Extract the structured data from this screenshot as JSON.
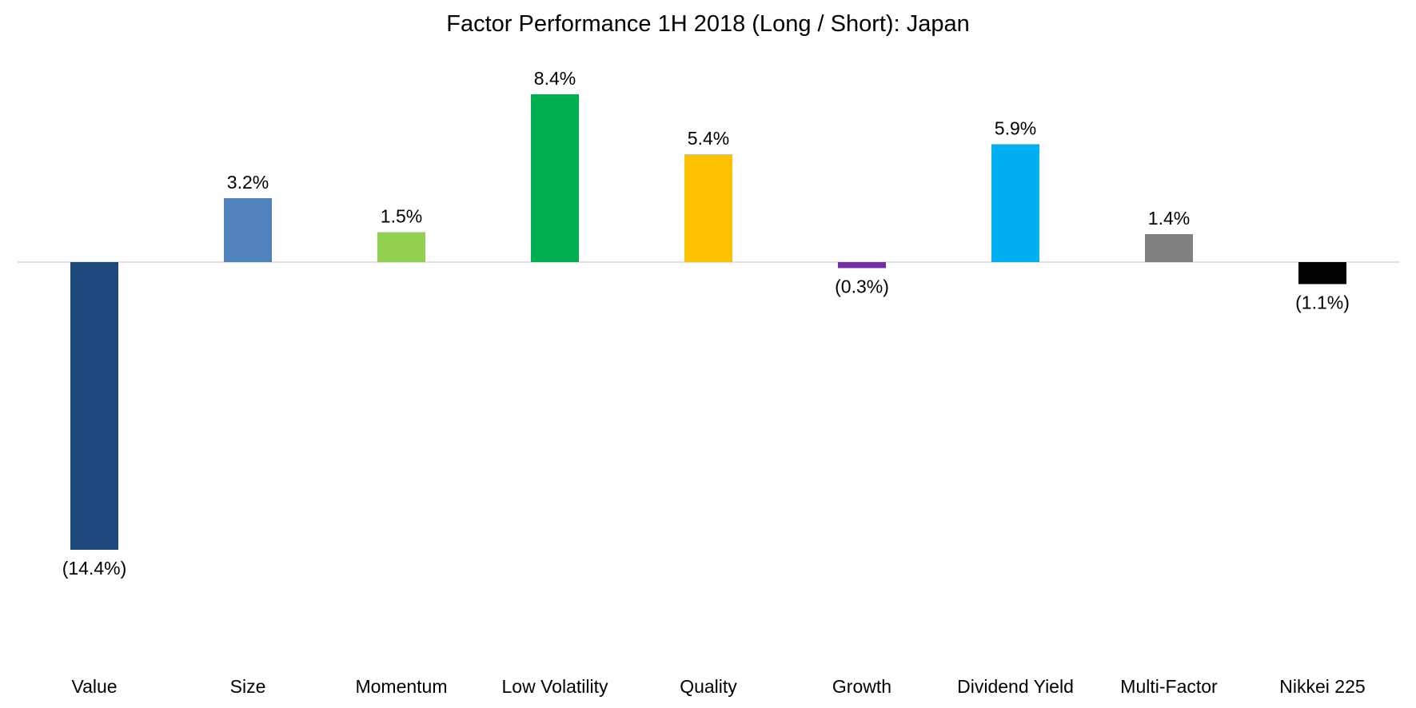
{
  "chart_data": {
    "type": "bar",
    "title": "Factor Performance 1H 2018 (Long / Short): Japan",
    "xlabel": "",
    "ylabel": "",
    "categories": [
      "Value",
      "Size",
      "Momentum",
      "Low Volatility",
      "Quality",
      "Growth",
      "Dividend Yield",
      "Multi-Factor",
      "Nikkei 225"
    ],
    "values": [
      -14.4,
      3.2,
      1.5,
      8.4,
      5.4,
      -0.3,
      5.9,
      1.4,
      -1.1
    ],
    "data_labels": [
      "(14.4%)",
      "3.2%",
      "1.5%",
      "8.4%",
      "5.4%",
      "(0.3%)",
      "5.9%",
      "1.4%",
      "(1.1%)"
    ],
    "colors": [
      "#1F497D",
      "#4F81BD",
      "#92D050",
      "#00B050",
      "#FFC000",
      "#7030A0",
      "#00B0F0",
      "#808080",
      "#000000"
    ],
    "ylim": [
      -18,
      9.5
    ],
    "grid": false,
    "legend": "none"
  }
}
